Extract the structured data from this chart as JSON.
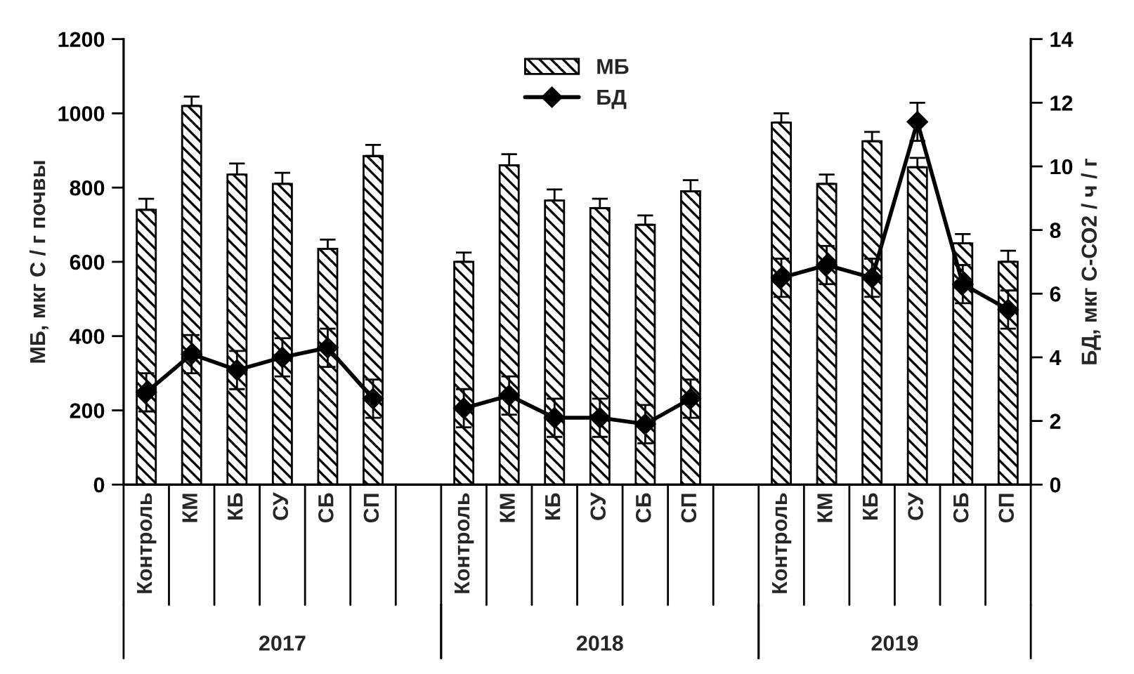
{
  "chart_data": {
    "type": "bar",
    "ylabel": "МБ, мкг С / г почвы",
    "y2label": "БД, мкг С-СО2 / ч / г",
    "categories": [
      "Контроль",
      "КМ",
      "КБ",
      "СУ",
      "СБ",
      "СП",
      null,
      "Контроль",
      "КМ",
      "КБ",
      "СУ",
      "СБ",
      "СП",
      null,
      "Контроль",
      "КМ",
      "КБ",
      "СУ",
      "СБ",
      "СП"
    ],
    "series": [
      {
        "name": "МБ",
        "color": "#000000",
        "values": [
          740,
          1020,
          835,
          810,
          635,
          885,
          null,
          600,
          860,
          765,
          745,
          700,
          790,
          null,
          975,
          810,
          925,
          855,
          650,
          600
        ],
        "errors": [
          30,
          25,
          30,
          30,
          25,
          30,
          null,
          25,
          30,
          30,
          25,
          25,
          30,
          null,
          25,
          25,
          25,
          25,
          25,
          30
        ]
      },
      {
        "name": "БД",
        "type": "line",
        "axis": "y2",
        "color": "#000000",
        "marker": "diamond",
        "values": [
          2.9,
          4.1,
          3.6,
          4.0,
          4.3,
          2.7,
          null,
          2.4,
          2.8,
          2.1,
          2.1,
          1.9,
          2.7,
          null,
          6.5,
          6.9,
          6.5,
          11.4,
          6.3,
          5.5
        ],
        "errors": [
          0.6,
          0.6,
          0.6,
          0.6,
          0.6,
          0.6,
          null,
          0.6,
          0.6,
          0.6,
          0.6,
          0.6,
          0.6,
          null,
          0.6,
          0.6,
          0.6,
          0.6,
          0.6,
          0.6
        ]
      }
    ],
    "ylim": [
      0,
      1200
    ],
    "yticks": [
      0,
      200,
      400,
      600,
      800,
      1000,
      1200
    ],
    "y2lim": [
      0,
      14
    ],
    "y2ticks": [
      0,
      2,
      4,
      6,
      8,
      10,
      12,
      14
    ],
    "annotations": [
      "2017",
      "2018",
      "2019"
    ],
    "legend": "top",
    "grid": false
  }
}
